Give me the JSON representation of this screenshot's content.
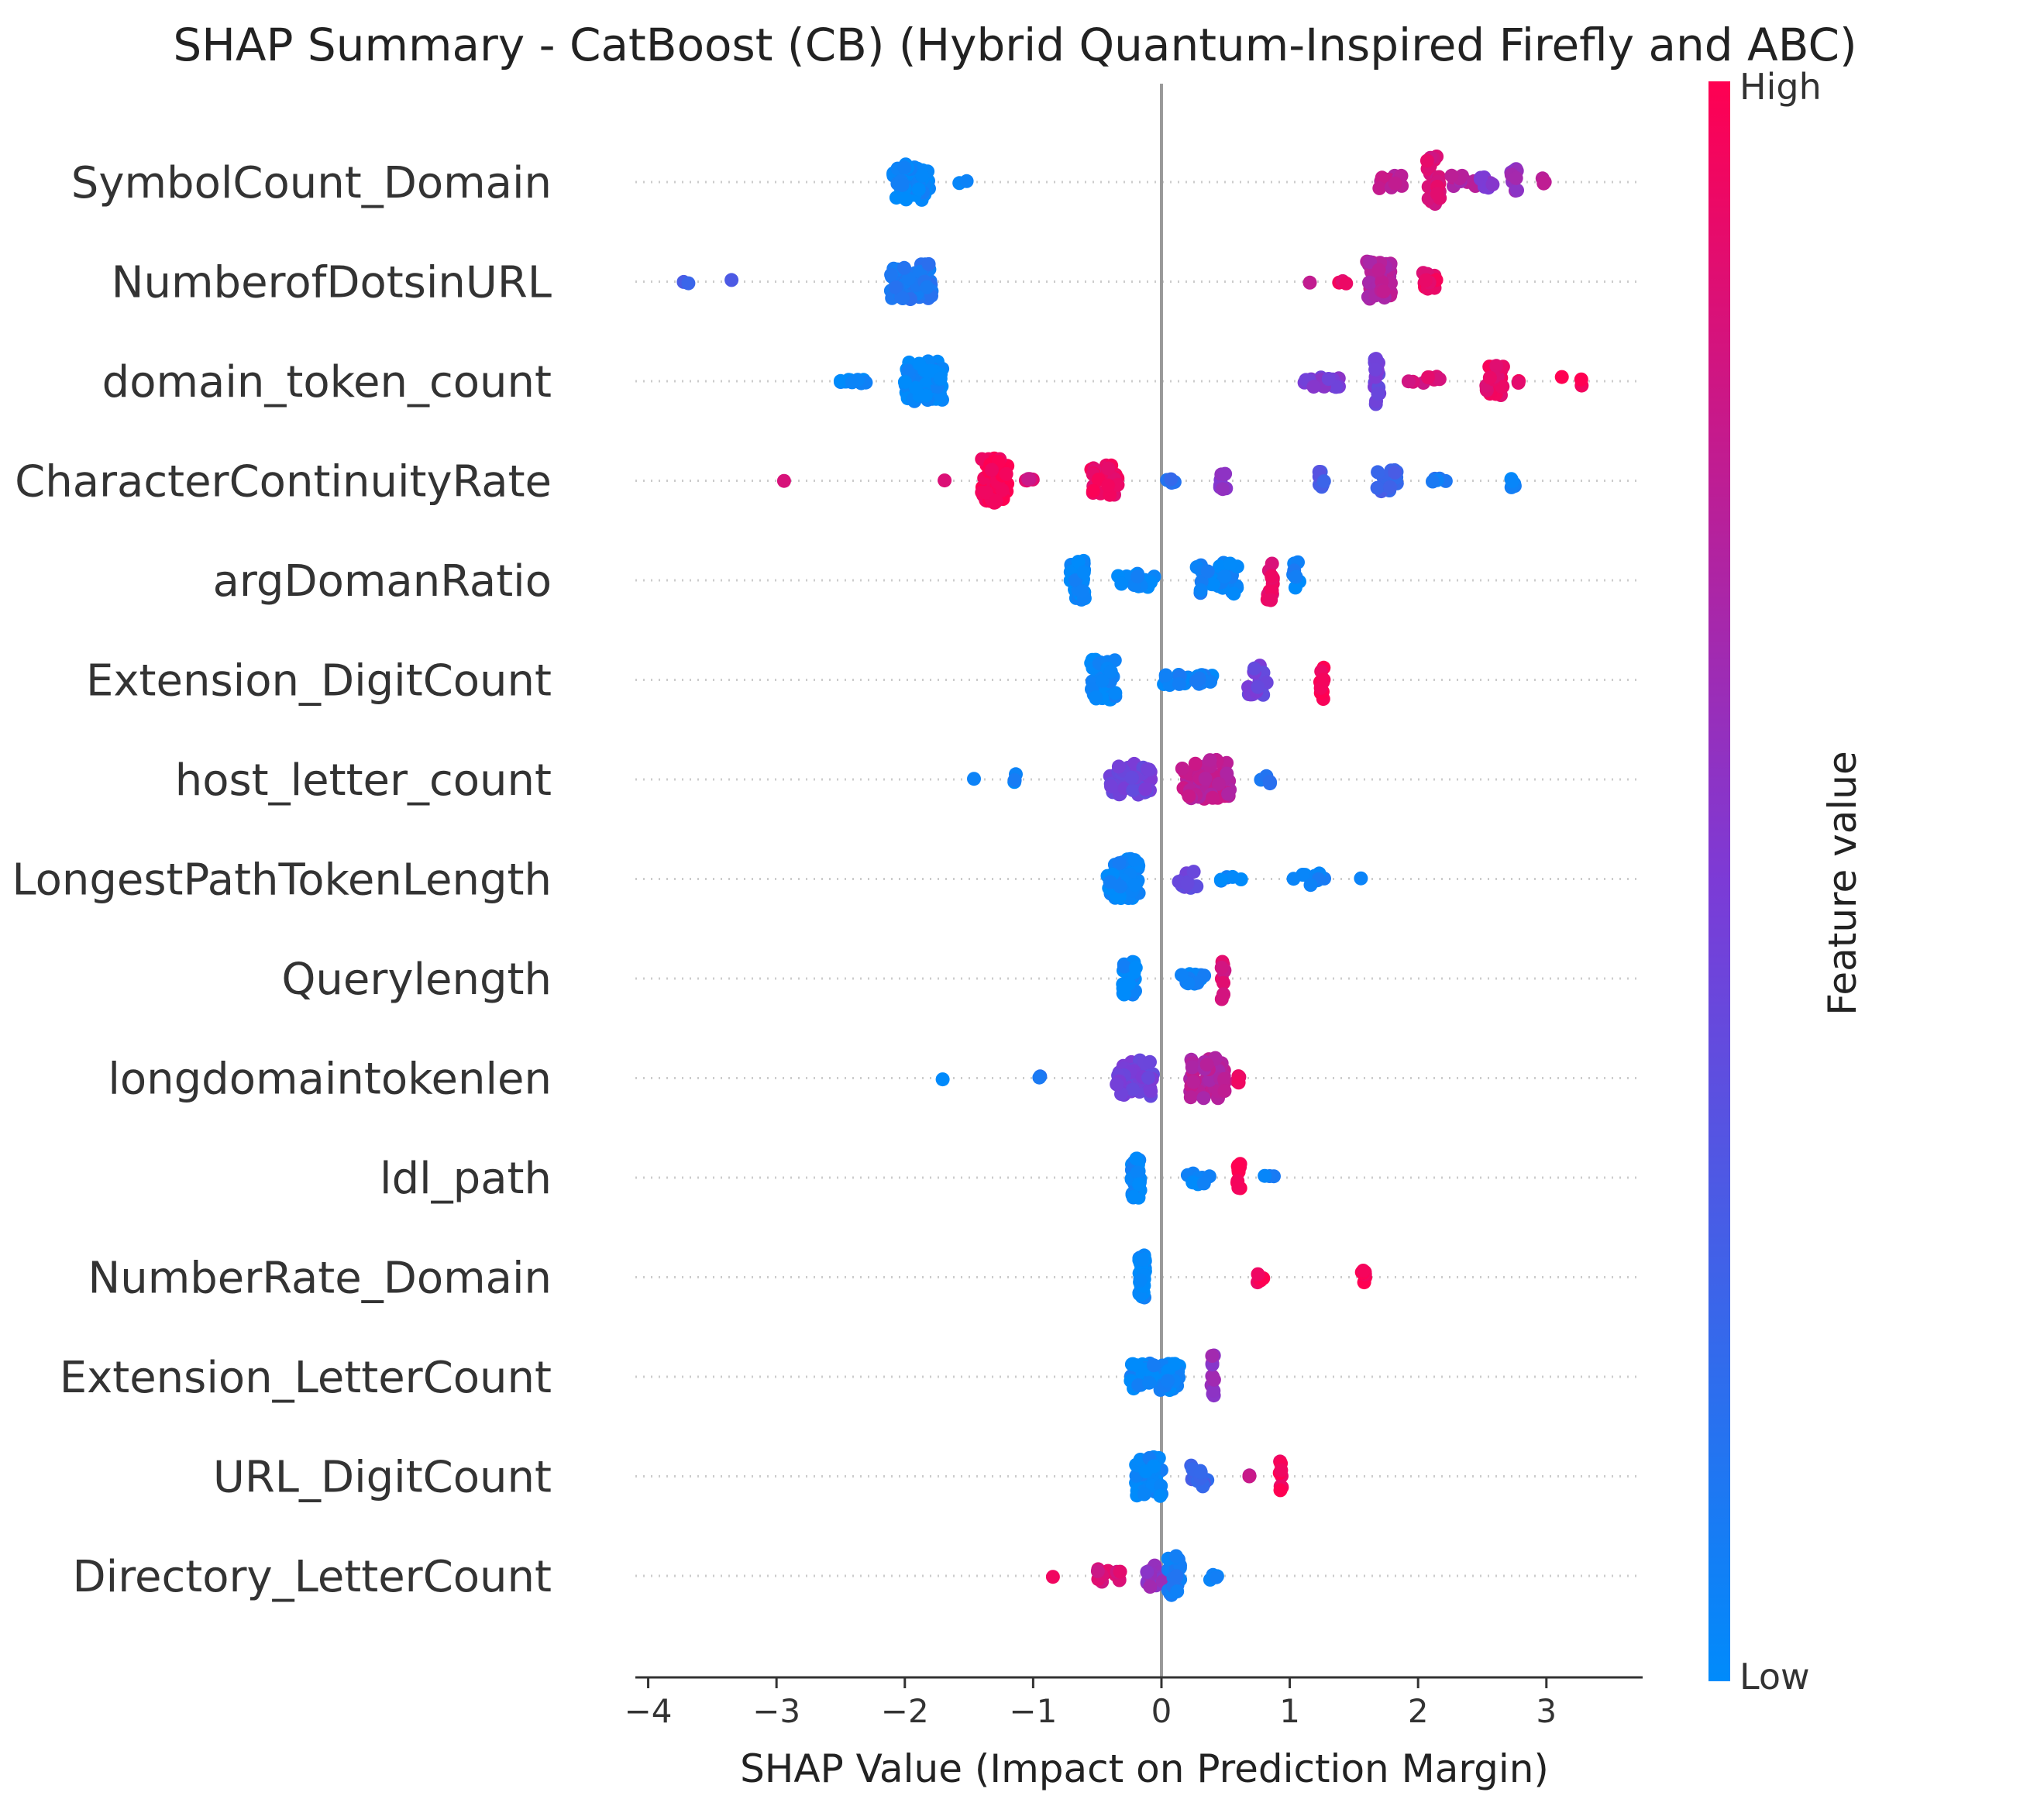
{
  "chart_data": {
    "type": "scatter",
    "subtype": "shap-beeswarm",
    "title": "SHAP Summary - CatBoost (CB) (Hybrid Quantum-Inspired Firefly and ABC)",
    "xlabel": "SHAP Value (Impact on Prediction Margin)",
    "ylabel": "",
    "xlim": [
      -4.1,
      3.75
    ],
    "xticks": [
      -4,
      -3,
      -2,
      -1,
      0,
      1,
      2,
      3
    ],
    "xtick_labels": [
      "−4",
      "−3",
      "−2",
      "−1",
      "0",
      "1",
      "2",
      "3"
    ],
    "zero_line": 0,
    "colorbar": {
      "label": "Feature value",
      "high_label": "High",
      "low_label": "Low",
      "low_color": "#008bfb",
      "high_color": "#ff0052"
    },
    "features": [
      {
        "name": "SymbolCount_Domain",
        "clusters": [
          {
            "x": -1.95,
            "w": 0.28,
            "n": 60,
            "h": 0.4,
            "c": 0.02
          },
          {
            "x": -1.55,
            "w": 0.1,
            "n": 2,
            "h": 0.05,
            "c": 0.05
          },
          {
            "x": 1.75,
            "w": 0.25,
            "n": 16,
            "h": 0.15,
            "c": 0.75
          },
          {
            "x": 2.12,
            "w": 0.1,
            "n": 30,
            "h": 0.6,
            "c": 0.85
          },
          {
            "x": 2.35,
            "w": 0.2,
            "n": 10,
            "h": 0.15,
            "c": 0.7
          },
          {
            "x": 2.55,
            "w": 0.15,
            "n": 8,
            "h": 0.15,
            "c": 0.55
          },
          {
            "x": 2.75,
            "w": 0.05,
            "n": 10,
            "h": 0.3,
            "c": 0.6
          },
          {
            "x": 2.98,
            "w": 0.05,
            "n": 3,
            "h": 0.1,
            "c": 0.75
          }
        ]
      },
      {
        "name": "NumberofDotsinURL",
        "clusters": [
          {
            "x": -3.7,
            "w": 0.05,
            "n": 2,
            "h": 0.05,
            "c": 0.25
          },
          {
            "x": -3.35,
            "w": 0.03,
            "n": 1,
            "h": 0.05,
            "c": 0.3
          },
          {
            "x": -1.95,
            "w": 0.32,
            "n": 60,
            "h": 0.4,
            "c": 0.12
          },
          {
            "x": 1.15,
            "w": 0.03,
            "n": 1,
            "h": 0.05,
            "c": 0.8
          },
          {
            "x": 1.4,
            "w": 0.1,
            "n": 3,
            "h": 0.05,
            "c": 0.9
          },
          {
            "x": 1.7,
            "w": 0.2,
            "n": 55,
            "h": 0.45,
            "c": 0.72
          },
          {
            "x": 2.1,
            "w": 0.12,
            "n": 12,
            "h": 0.2,
            "c": 0.92
          }
        ]
      },
      {
        "name": "domain_token_count",
        "clusters": [
          {
            "x": -2.4,
            "w": 0.22,
            "n": 12,
            "h": 0.05,
            "c": 0.02
          },
          {
            "x": -1.85,
            "w": 0.3,
            "n": 70,
            "h": 0.45,
            "c": 0.02
          },
          {
            "x": 1.25,
            "w": 0.3,
            "n": 22,
            "h": 0.15,
            "c": 0.5
          },
          {
            "x": 1.68,
            "w": 0.04,
            "n": 16,
            "h": 0.55,
            "c": 0.45
          },
          {
            "x": 2.05,
            "w": 0.25,
            "n": 8,
            "h": 0.1,
            "c": 0.85
          },
          {
            "x": 2.6,
            "w": 0.14,
            "n": 25,
            "h": 0.35,
            "c": 0.92
          },
          {
            "x": 2.8,
            "w": 0.05,
            "n": 2,
            "h": 0.05,
            "c": 0.95
          },
          {
            "x": 3.2,
            "w": 0.22,
            "n": 3,
            "h": 0.1,
            "c": 0.98
          }
        ]
      },
      {
        "name": "CharacterContinuityRate",
        "clusters": [
          {
            "x": -2.95,
            "w": 0.02,
            "n": 1,
            "h": 0.05,
            "c": 0.8
          },
          {
            "x": -1.7,
            "w": 0.03,
            "n": 1,
            "h": 0.05,
            "c": 0.9
          },
          {
            "x": -1.3,
            "w": 0.2,
            "n": 70,
            "h": 0.5,
            "c": 0.97
          },
          {
            "x": -1.02,
            "w": 0.1,
            "n": 5,
            "h": 0.05,
            "c": 0.85
          },
          {
            "x": -0.45,
            "w": 0.22,
            "n": 30,
            "h": 0.35,
            "c": 0.93
          },
          {
            "x": 0.05,
            "w": 0.12,
            "n": 4,
            "h": 0.05,
            "c": 0.2
          },
          {
            "x": 0.48,
            "w": 0.05,
            "n": 7,
            "h": 0.2,
            "c": 0.55
          },
          {
            "x": 1.25,
            "w": 0.05,
            "n": 7,
            "h": 0.2,
            "c": 0.3
          },
          {
            "x": 1.75,
            "w": 0.18,
            "n": 20,
            "h": 0.25,
            "c": 0.25
          },
          {
            "x": 2.15,
            "w": 0.15,
            "n": 5,
            "h": 0.05,
            "c": 0.1
          },
          {
            "x": 2.75,
            "w": 0.05,
            "n": 5,
            "h": 0.15,
            "c": 0.05
          }
        ]
      },
      {
        "name": "argDomanRatio",
        "clusters": [
          {
            "x": -0.65,
            "w": 0.12,
            "n": 40,
            "h": 0.45,
            "c": 0.02
          },
          {
            "x": -0.2,
            "w": 0.3,
            "n": 20,
            "h": 0.15,
            "c": 0.03
          },
          {
            "x": 0.45,
            "w": 0.35,
            "n": 30,
            "h": 0.4,
            "c": 0.05
          },
          {
            "x": 0.85,
            "w": 0.05,
            "n": 14,
            "h": 0.45,
            "c": 0.9
          },
          {
            "x": 1.05,
            "w": 0.05,
            "n": 8,
            "h": 0.45,
            "c": 0.06
          }
        ]
      },
      {
        "name": "Extension_DigitCount",
        "clusters": [
          {
            "x": -0.45,
            "w": 0.2,
            "n": 45,
            "h": 0.45,
            "c": 0.02
          },
          {
            "x": 0.2,
            "w": 0.4,
            "n": 25,
            "h": 0.12,
            "c": 0.05
          },
          {
            "x": 0.75,
            "w": 0.15,
            "n": 18,
            "h": 0.35,
            "c": 0.45
          },
          {
            "x": 1.25,
            "w": 0.03,
            "n": 10,
            "h": 0.45,
            "c": 0.97
          }
        ]
      },
      {
        "name": "host_letter_count",
        "clusters": [
          {
            "x": -1.45,
            "w": 0.03,
            "n": 1,
            "h": 0.05,
            "c": 0.05
          },
          {
            "x": -1.15,
            "w": 0.03,
            "n": 3,
            "h": 0.15,
            "c": 0.05
          },
          {
            "x": -0.25,
            "w": 0.35,
            "n": 40,
            "h": 0.35,
            "c": 0.45
          },
          {
            "x": 0.35,
            "w": 0.38,
            "n": 65,
            "h": 0.45,
            "c": 0.75
          },
          {
            "x": 0.8,
            "w": 0.1,
            "n": 4,
            "h": 0.1,
            "c": 0.15
          }
        ]
      },
      {
        "name": "LongestPathTokenLength",
        "clusters": [
          {
            "x": -0.3,
            "w": 0.25,
            "n": 55,
            "h": 0.45,
            "c": 0.03
          },
          {
            "x": 0.2,
            "w": 0.2,
            "n": 10,
            "h": 0.2,
            "c": 0.4
          },
          {
            "x": 0.55,
            "w": 0.25,
            "n": 6,
            "h": 0.05,
            "c": 0.05
          },
          {
            "x": 1.15,
            "w": 0.25,
            "n": 10,
            "h": 0.15,
            "c": 0.05
          },
          {
            "x": 1.55,
            "w": 0.03,
            "n": 1,
            "h": 0.05,
            "c": 0.05
          }
        ]
      },
      {
        "name": "Querylength",
        "clusters": [
          {
            "x": -0.25,
            "w": 0.1,
            "n": 35,
            "h": 0.4,
            "c": 0.03
          },
          {
            "x": 0.25,
            "w": 0.2,
            "n": 18,
            "h": 0.12,
            "c": 0.05
          },
          {
            "x": 0.48,
            "w": 0.03,
            "n": 10,
            "h": 0.5,
            "c": 0.85
          }
        ]
      },
      {
        "name": "longdomaintokenlen",
        "clusters": [
          {
            "x": -1.7,
            "w": 0.02,
            "n": 1,
            "h": 0.05,
            "c": 0.05
          },
          {
            "x": -0.95,
            "w": 0.05,
            "n": 2,
            "h": 0.05,
            "c": 0.1
          },
          {
            "x": -0.2,
            "w": 0.3,
            "n": 45,
            "h": 0.4,
            "c": 0.45
          },
          {
            "x": 0.35,
            "w": 0.3,
            "n": 55,
            "h": 0.45,
            "c": 0.72
          },
          {
            "x": 0.6,
            "w": 0.05,
            "n": 4,
            "h": 0.1,
            "c": 0.9
          }
        ]
      },
      {
        "name": "ldl_path",
        "clusters": [
          {
            "x": -0.2,
            "w": 0.07,
            "n": 45,
            "h": 0.45,
            "c": 0.03
          },
          {
            "x": 0.3,
            "w": 0.2,
            "n": 12,
            "h": 0.15,
            "c": 0.05
          },
          {
            "x": 0.6,
            "w": 0.03,
            "n": 10,
            "h": 0.35,
            "c": 0.97
          },
          {
            "x": 0.85,
            "w": 0.1,
            "n": 3,
            "h": 0.05,
            "c": 0.05
          }
        ]
      },
      {
        "name": "NumberRate_Domain",
        "clusters": [
          {
            "x": -0.15,
            "w": 0.05,
            "n": 50,
            "h": 0.5,
            "c": 0.02
          },
          {
            "x": 0.78,
            "w": 0.08,
            "n": 4,
            "h": 0.12,
            "c": 0.97
          },
          {
            "x": 1.58,
            "w": 0.04,
            "n": 8,
            "h": 0.15,
            "c": 0.99
          }
        ]
      },
      {
        "name": "Extension_LetterCount",
        "clusters": [
          {
            "x": -0.05,
            "w": 0.38,
            "n": 60,
            "h": 0.3,
            "c": 0.03
          },
          {
            "x": 0.4,
            "w": 0.02,
            "n": 12,
            "h": 0.5,
            "c": 0.6
          }
        ]
      },
      {
        "name": "URL_DigitCount",
        "clusters": [
          {
            "x": -0.1,
            "w": 0.2,
            "n": 55,
            "h": 0.45,
            "c": 0.03
          },
          {
            "x": 0.3,
            "w": 0.15,
            "n": 15,
            "h": 0.25,
            "c": 0.25
          },
          {
            "x": 0.7,
            "w": 0.03,
            "n": 2,
            "h": 0.05,
            "c": 0.75
          },
          {
            "x": 0.93,
            "w": 0.03,
            "n": 8,
            "h": 0.35,
            "c": 0.97
          }
        ]
      },
      {
        "name": "Directory_LetterCount",
        "clusters": [
          {
            "x": -0.85,
            "w": 0.02,
            "n": 1,
            "h": 0.05,
            "c": 0.95
          },
          {
            "x": -0.4,
            "w": 0.2,
            "n": 12,
            "h": 0.15,
            "c": 0.85
          },
          {
            "x": -0.05,
            "w": 0.15,
            "n": 20,
            "h": 0.25,
            "c": 0.6
          },
          {
            "x": 0.1,
            "w": 0.1,
            "n": 30,
            "h": 0.45,
            "c": 0.08
          },
          {
            "x": 0.4,
            "w": 0.08,
            "n": 4,
            "h": 0.15,
            "c": 0.05
          }
        ]
      }
    ]
  }
}
